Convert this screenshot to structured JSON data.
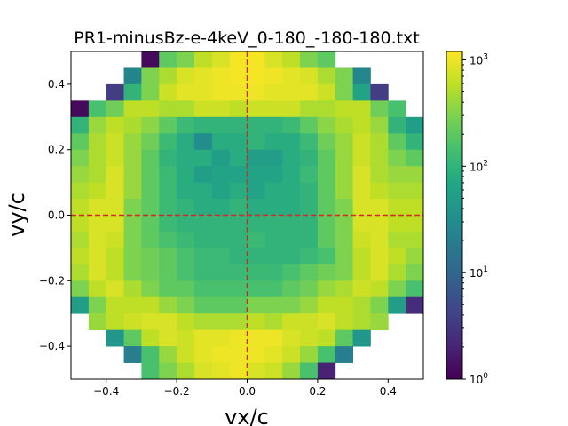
{
  "chart_data": {
    "type": "heatmap",
    "title": "PR1-minusBz-e-4keV_0-180_-180-180.txt",
    "xlabel": "vx/c",
    "ylabel": "vy/c",
    "xlim": [
      -0.5,
      0.5
    ],
    "ylim": [
      -0.5,
      0.5
    ],
    "x_ticks": [
      -0.4,
      -0.2,
      0.0,
      0.2,
      0.4
    ],
    "x_tick_labels": [
      "−0.4",
      "−0.2",
      "0.0",
      "0.2",
      "0.4"
    ],
    "y_ticks": [
      -0.4,
      -0.2,
      0.0,
      0.2,
      0.4
    ],
    "y_tick_labels": [
      "−0.4",
      "−0.2",
      "0.0",
      "0.2",
      "0.4"
    ],
    "colorscale": "viridis",
    "color_scale_type": "log",
    "color_range": [
      1,
      1200
    ],
    "colorbar_ticks": [
      {
        "value": 1,
        "base": "10",
        "exp": "0"
      },
      {
        "value": 10,
        "base": "10",
        "exp": "1"
      },
      {
        "value": 100,
        "base": "10",
        "exp": "2"
      },
      {
        "value": 1000,
        "base": "10",
        "exp": "3"
      }
    ],
    "bins": 20,
    "bin_width": 0.05,
    "reference_lines": [
      {
        "orientation": "vertical",
        "value": 0.0,
        "color": "#d62728",
        "style": "dashed"
      },
      {
        "orientation": "horizontal",
        "value": 0.0,
        "color": "#d62728",
        "style": "dashed"
      }
    ],
    "grid": false,
    "values_note_rows_top_to_bottom": true,
    "values": [
      [
        0,
        0,
        0,
        0,
        1.2,
        200,
        300,
        600,
        800,
        1100,
        1100,
        800,
        600,
        300,
        200,
        0,
        0,
        0,
        0,
        0
      ],
      [
        0,
        0,
        0,
        25,
        300,
        500,
        800,
        900,
        1000,
        1100,
        1100,
        1000,
        900,
        800,
        500,
        300,
        25,
        0,
        0,
        0
      ],
      [
        0,
        0,
        3.5,
        100,
        300,
        700,
        900,
        900,
        1000,
        1000,
        1000,
        900,
        900,
        900,
        700,
        300,
        60,
        3.5,
        0,
        0
      ],
      [
        1.2,
        150,
        250,
        600,
        600,
        500,
        500,
        700,
        700,
        600,
        700,
        700,
        700,
        500,
        500,
        600,
        600,
        250,
        150,
        0
      ],
      [
        100,
        400,
        600,
        500,
        350,
        200,
        120,
        100,
        100,
        100,
        100,
        100,
        120,
        200,
        350,
        500,
        600,
        400,
        100,
        50
      ],
      [
        200,
        500,
        700,
        400,
        250,
        120,
        80,
        30,
        80,
        80,
        100,
        80,
        80,
        120,
        250,
        400,
        700,
        500,
        200,
        100
      ],
      [
        300,
        500,
        700,
        400,
        200,
        100,
        80,
        80,
        50,
        80,
        50,
        50,
        80,
        100,
        200,
        400,
        700,
        500,
        300,
        200
      ],
      [
        400,
        500,
        800,
        400,
        200,
        120,
        80,
        50,
        60,
        60,
        60,
        60,
        80,
        120,
        200,
        400,
        800,
        500,
        400,
        400
      ],
      [
        500,
        600,
        800,
        400,
        200,
        120,
        80,
        80,
        60,
        80,
        60,
        80,
        80,
        100,
        200,
        400,
        800,
        600,
        500,
        500
      ],
      [
        600,
        800,
        800,
        300,
        200,
        120,
        100,
        80,
        80,
        100,
        80,
        80,
        80,
        100,
        200,
        300,
        800,
        800,
        600,
        600
      ],
      [
        600,
        800,
        800,
        300,
        200,
        120,
        100,
        100,
        100,
        100,
        100,
        100,
        100,
        100,
        200,
        300,
        800,
        800,
        600,
        600
      ],
      [
        500,
        800,
        700,
        300,
        200,
        150,
        120,
        100,
        100,
        100,
        120,
        100,
        100,
        100,
        200,
        300,
        700,
        800,
        500,
        500
      ],
      [
        600,
        800,
        600,
        300,
        250,
        200,
        150,
        120,
        120,
        100,
        100,
        100,
        100,
        120,
        150,
        300,
        600,
        800,
        600,
        400
      ],
      [
        500,
        800,
        600,
        300,
        250,
        200,
        150,
        120,
        120,
        120,
        120,
        120,
        150,
        200,
        250,
        300,
        600,
        800,
        500,
        300
      ],
      [
        300,
        600,
        800,
        500,
        300,
        200,
        200,
        150,
        150,
        150,
        150,
        150,
        200,
        250,
        400,
        500,
        700,
        600,
        300,
        150
      ],
      [
        50,
        300,
        600,
        600,
        600,
        400,
        300,
        200,
        200,
        200,
        300,
        300,
        300,
        400,
        600,
        600,
        500,
        300,
        50,
        2.5
      ],
      [
        0,
        400,
        600,
        700,
        800,
        800,
        600,
        500,
        500,
        500,
        600,
        500,
        700,
        700,
        800,
        600,
        500,
        400,
        0,
        0
      ],
      [
        0,
        0,
        40,
        200,
        600,
        800,
        700,
        900,
        900,
        1000,
        1000,
        1000,
        800,
        700,
        600,
        200,
        40,
        0,
        0,
        0
      ],
      [
        0,
        0,
        0,
        20,
        150,
        400,
        700,
        900,
        1000,
        1000,
        1000,
        900,
        700,
        400,
        150,
        20,
        0,
        0,
        0,
        0
      ],
      [
        0,
        0,
        0,
        0,
        150,
        300,
        500,
        800,
        900,
        1000,
        800,
        700,
        400,
        150,
        2,
        0,
        0,
        0,
        0,
        0
      ]
    ]
  }
}
